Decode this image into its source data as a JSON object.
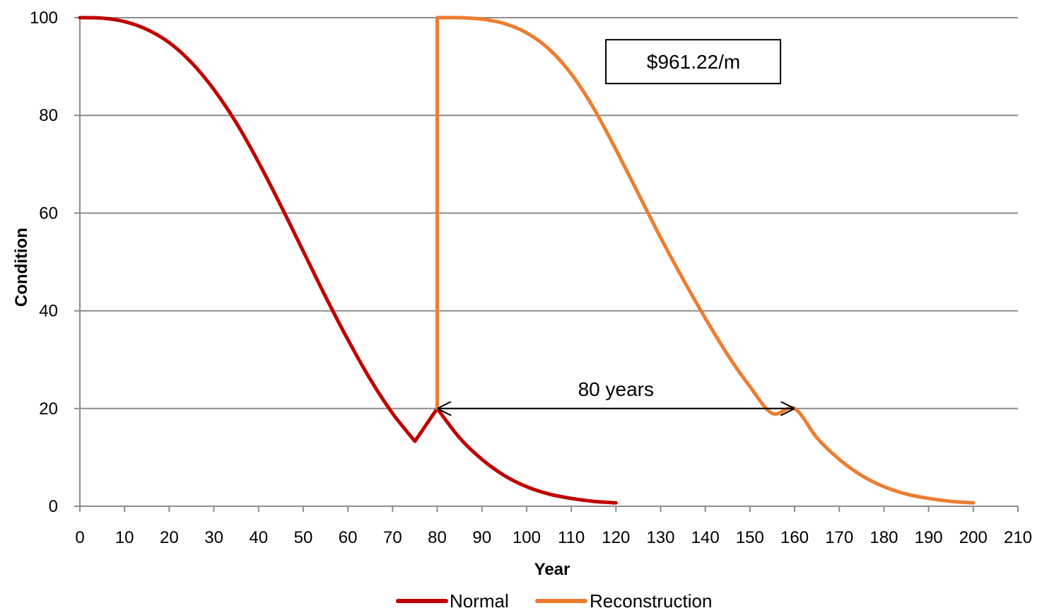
{
  "chart_data": {
    "type": "line",
    "xlabel": "Year",
    "ylabel": "Condition",
    "xlim": [
      0,
      210
    ],
    "ylim": [
      0,
      100
    ],
    "xticks": [
      0,
      10,
      20,
      30,
      40,
      50,
      60,
      70,
      80,
      90,
      100,
      110,
      120,
      130,
      140,
      150,
      160,
      170,
      180,
      190,
      200,
      210
    ],
    "yticks": [
      0,
      20,
      40,
      60,
      80,
      100
    ],
    "grid": "horizontal",
    "legend": "bottom",
    "series": [
      {
        "name": "Normal",
        "color": "#C00000",
        "x": [
          0,
          5,
          10,
          15,
          20,
          25,
          30,
          35,
          40,
          45,
          50,
          55,
          60,
          65,
          70,
          75,
          80,
          85,
          90,
          95,
          100,
          105,
          110,
          115,
          120
        ],
        "y": [
          100,
          99.9,
          99.2,
          97.6,
          94.9,
          90.8,
          85.3,
          78.5,
          70.4,
          61.5,
          52.2,
          42.9,
          34.1,
          26.0,
          19.0,
          13.3,
          20,
          14.0,
          9.6,
          6.3,
          4.0,
          2.5,
          1.6,
          1.0,
          0.7
        ]
      },
      {
        "name": "Reconstruction",
        "color": "#ED7D31",
        "x": [
          80,
          80,
          85,
          90,
          95,
          100,
          105,
          110,
          115,
          120,
          125,
          130,
          135,
          140,
          145,
          150,
          155,
          160,
          165,
          170,
          175,
          180,
          185,
          190,
          195,
          200
        ],
        "y": [
          20,
          100,
          100,
          99.7,
          98.8,
          96.9,
          93.6,
          88.5,
          81.5,
          73.0,
          64.0,
          55.0,
          46.5,
          38.5,
          31.0,
          24.5,
          19.0,
          20,
          14.0,
          9.6,
          6.3,
          4.0,
          2.5,
          1.6,
          1.0,
          0.7
        ]
      }
    ],
    "annotations": [
      {
        "type": "textbox",
        "text": "$961.22/m",
        "x": 135,
        "y": 91
      },
      {
        "type": "double-arrow",
        "text": "80 years",
        "x1": 80,
        "x2": 160,
        "y": 20
      }
    ]
  }
}
